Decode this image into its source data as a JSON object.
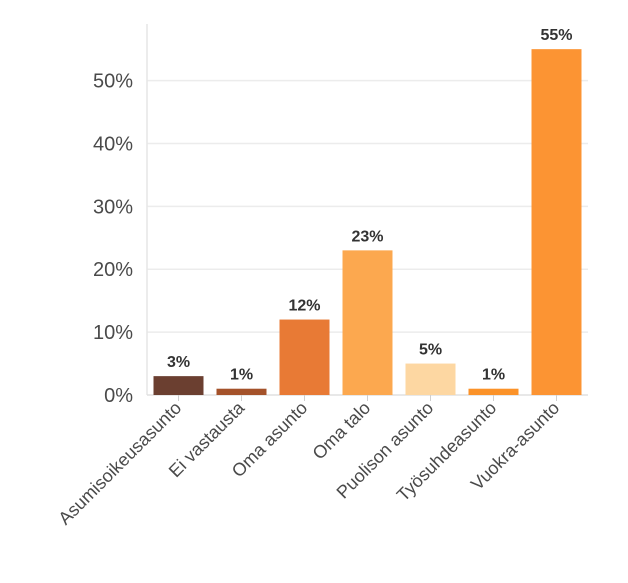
{
  "chart_data": {
    "type": "bar",
    "categories": [
      "Asumisoikeusasunto",
      "Ei vastausta",
      "Oma asunto",
      "Oma talo",
      "Puolison asunto",
      "Työsuhdeasunto",
      "Vuokra-asunto"
    ],
    "values": [
      3,
      1,
      12,
      23,
      5,
      1,
      55
    ],
    "data_labels": [
      "3%",
      "1%",
      "12%",
      "23%",
      "5%",
      "1%",
      "55%"
    ],
    "colors": [
      "#6b3f30",
      "#a4522a",
      "#e87a35",
      "#fca84f",
      "#fdd7a2",
      "#fb9229",
      "#fc9433"
    ],
    "ylim": [
      0,
      59
    ],
    "yticks": [
      0,
      10,
      20,
      30,
      40,
      50
    ],
    "ytick_labels": [
      "0%",
      "10%",
      "20%",
      "30%",
      "40%",
      "50%"
    ],
    "grid": true,
    "title": "",
    "xlabel": "",
    "ylabel": ""
  }
}
